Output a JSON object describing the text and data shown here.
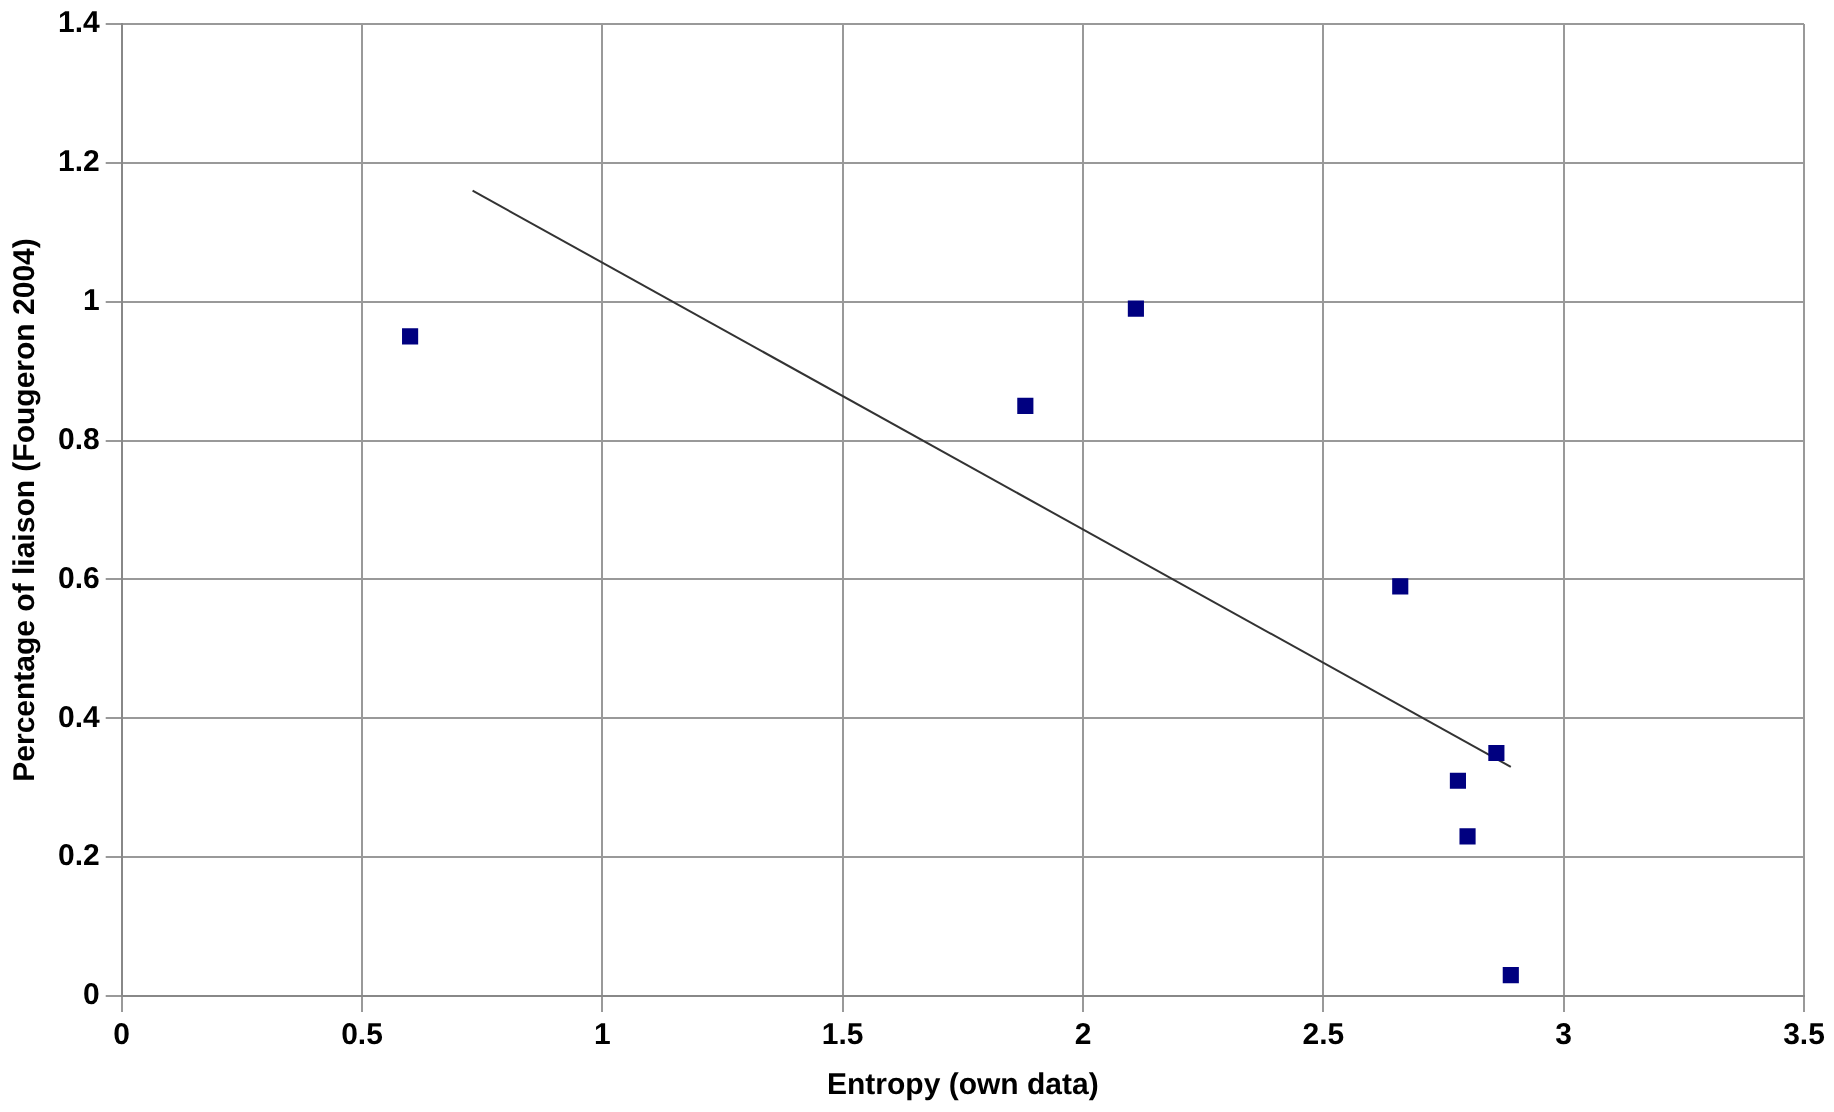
{
  "chart_data": {
    "type": "scatter",
    "xlabel": "Entropy (own data)",
    "ylabel": "Percentage of liaison (Fougeron 2004)",
    "xlim": [
      0,
      3.5
    ],
    "xticks": [
      0,
      0.5,
      1,
      1.5,
      2,
      2.5,
      3,
      3.5
    ],
    "ylim": [
      0,
      1.4
    ],
    "yticks": [
      0,
      0.2,
      0.4,
      0.6,
      0.8,
      1,
      1.2,
      1.4
    ],
    "grid": true,
    "legend": false,
    "series": [
      {
        "marker": "square",
        "color": "#000080",
        "x": [
          0.6,
          1.88,
          2.11,
          2.66,
          2.78,
          2.86,
          2.8,
          2.89
        ],
        "values": [
          0.95,
          0.85,
          0.99,
          0.59,
          0.31,
          0.35,
          0.23,
          0.03
        ]
      },
      {
        "type": "line",
        "color": "#333333",
        "x": [
          0.73,
          2.89
        ],
        "values": [
          1.16,
          0.33
        ]
      }
    ]
  }
}
